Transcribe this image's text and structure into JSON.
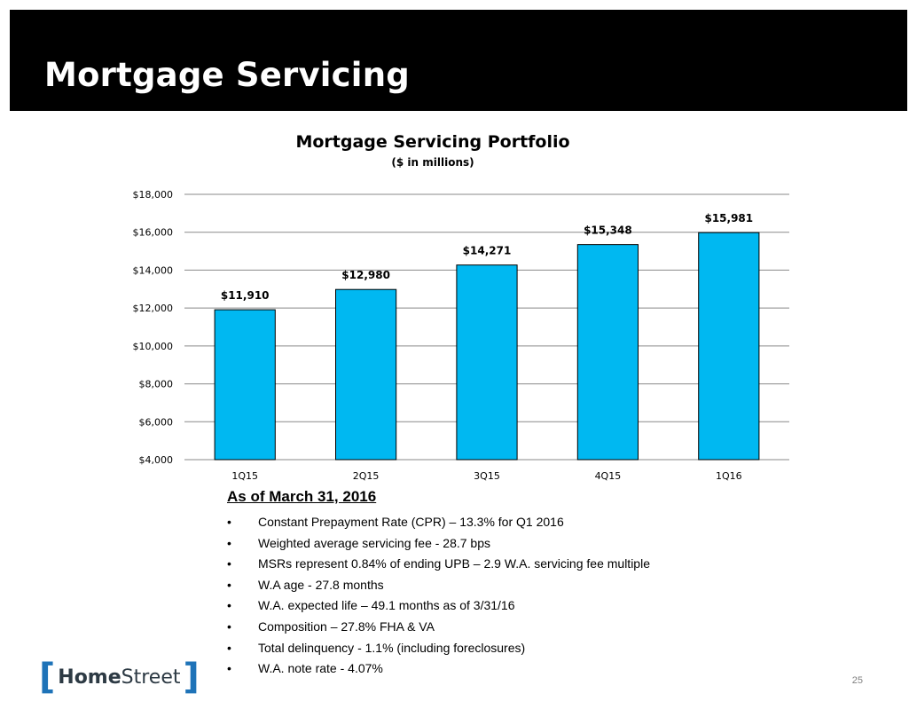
{
  "header": {
    "title": "Mortgage Servicing"
  },
  "chart_data": {
    "type": "bar",
    "title": "Mortgage Servicing Portfolio",
    "subtitle": "($ in millions)",
    "categories": [
      "1Q15",
      "2Q15",
      "3Q15",
      "4Q15",
      "1Q16"
    ],
    "values": [
      11910,
      12980,
      14271,
      15348,
      15981
    ],
    "data_labels": [
      "$11,910",
      "$12,980",
      "$14,271",
      "$15,348",
      "$15,981"
    ],
    "ylim": [
      4000,
      18000
    ],
    "yticks": [
      4000,
      6000,
      8000,
      10000,
      12000,
      14000,
      16000,
      18000
    ],
    "ytick_labels": [
      "$4,000",
      "$6,000",
      "$8,000",
      "$10,000",
      "$12,000",
      "$14,000",
      "$16,000",
      "$18,000"
    ],
    "grid": true,
    "bar_color": "#00b8f1",
    "xlabel": "",
    "ylabel": ""
  },
  "notes": {
    "heading": "As of March 31, 2016",
    "bullet": "•",
    "items": [
      "Constant Prepayment Rate (CPR) – 13.3% for Q1 2016",
      "Weighted average servicing fee - 28.7 bps",
      "MSRs represent 0.84% of ending UPB – 2.9 W.A. servicing fee multiple",
      "W.A age - 27.8 months",
      "W.A. expected life – 49.1 months as of 3/31/16",
      "Composition – 27.8% FHA & VA",
      "Total delinquency - 1.1% (including foreclosures)",
      "W.A. note rate - 4.07%"
    ]
  },
  "footer": {
    "logo": {
      "part1": "Home",
      "part2": "Street"
    },
    "page_number": "25"
  }
}
